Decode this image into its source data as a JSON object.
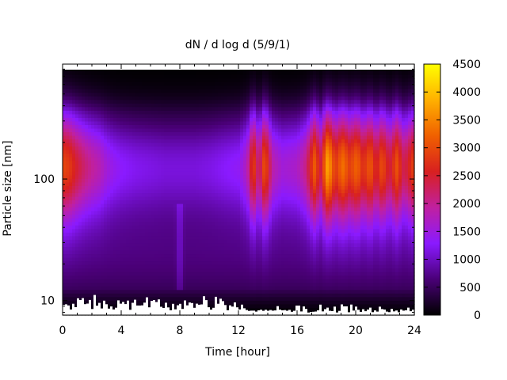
{
  "chart_data": {
    "type": "heatmap",
    "title": "dN / d log d (5/9/1)",
    "xlabel": "Time [hour]",
    "ylabel": "Particle size [nm]",
    "xlim": [
      0,
      24
    ],
    "ylim": [
      7.6,
      880
    ],
    "y_scale": "log",
    "x_ticks": [
      0,
      4,
      8,
      12,
      16,
      20,
      24
    ],
    "y_ticks": [
      {
        "value": 10,
        "label": "10"
      },
      {
        "value": 100,
        "label": "100"
      }
    ],
    "colorbar": {
      "range": [
        0,
        4500
      ],
      "ticks": [
        0,
        500,
        1000,
        1500,
        2000,
        2500,
        3000,
        3500,
        4000,
        4500
      ],
      "colormap": [
        "#000000",
        "#4a0077",
        "#8a1aff",
        "#c020a0",
        "#d82020",
        "#f06000",
        "#ffb000",
        "#ffff00"
      ]
    },
    "peak_diameter_nm": 130,
    "hourly_peak_concentration": [
      {
        "hour": 0.0,
        "value": 2900
      },
      {
        "hour": 0.5,
        "value": 2750
      },
      {
        "hour": 1.0,
        "value": 2400
      },
      {
        "hour": 1.5,
        "value": 2100
      },
      {
        "hour": 2.0,
        "value": 1900
      },
      {
        "hour": 2.5,
        "value": 1750
      },
      {
        "hour": 3.0,
        "value": 1500
      },
      {
        "hour": 3.5,
        "value": 1350
      },
      {
        "hour": 4.0,
        "value": 1250
      },
      {
        "hour": 5.0,
        "value": 1150
      },
      {
        "hour": 6.0,
        "value": 1100
      },
      {
        "hour": 7.0,
        "value": 1050
      },
      {
        "hour": 8.0,
        "value": 1050
      },
      {
        "hour": 9.0,
        "value": 1050
      },
      {
        "hour": 10.0,
        "value": 1100
      },
      {
        "hour": 11.0,
        "value": 1200
      },
      {
        "hour": 12.0,
        "value": 1300
      },
      {
        "hour": 12.6,
        "value": 1700
      },
      {
        "hour": 13.0,
        "value": 2900
      },
      {
        "hour": 13.4,
        "value": 1900
      },
      {
        "hour": 13.8,
        "value": 3100
      },
      {
        "hour": 14.3,
        "value": 1800
      },
      {
        "hour": 15.0,
        "value": 1500
      },
      {
        "hour": 16.0,
        "value": 1600
      },
      {
        "hour": 16.6,
        "value": 2000
      },
      {
        "hour": 17.2,
        "value": 3100
      },
      {
        "hour": 17.6,
        "value": 2300
      },
      {
        "hour": 18.1,
        "value": 3800
      },
      {
        "hour": 18.6,
        "value": 2700
      },
      {
        "hour": 19.1,
        "value": 3300
      },
      {
        "hour": 19.6,
        "value": 2800
      },
      {
        "hour": 20.1,
        "value": 3200
      },
      {
        "hour": 20.5,
        "value": 2600
      },
      {
        "hour": 21.0,
        "value": 3100
      },
      {
        "hour": 21.4,
        "value": 2400
      },
      {
        "hour": 21.8,
        "value": 3000
      },
      {
        "hour": 22.3,
        "value": 2300
      },
      {
        "hour": 22.8,
        "value": 3000
      },
      {
        "hour": 23.3,
        "value": 2200
      },
      {
        "hour": 24.0,
        "value": 2900
      }
    ]
  }
}
